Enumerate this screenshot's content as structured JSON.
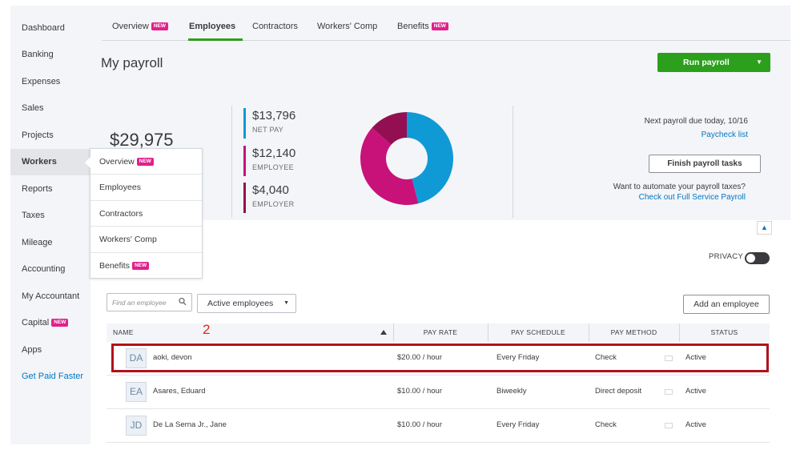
{
  "sidebar": {
    "items": [
      {
        "label": "Dashboard"
      },
      {
        "label": "Banking"
      },
      {
        "label": "Expenses"
      },
      {
        "label": "Sales"
      },
      {
        "label": "Projects"
      },
      {
        "label": "Workers"
      },
      {
        "label": "Reports"
      },
      {
        "label": "Taxes"
      },
      {
        "label": "Mileage"
      },
      {
        "label": "Accounting"
      },
      {
        "label": "My Accountant"
      },
      {
        "label": "Capital",
        "badge": "NEW"
      },
      {
        "label": "Apps"
      },
      {
        "label": "Get Paid Faster"
      }
    ]
  },
  "flyout": {
    "items": [
      {
        "label": "Overview",
        "badge": "NEW"
      },
      {
        "label": "Employees"
      },
      {
        "label": "Contractors"
      },
      {
        "label": "Workers' Comp"
      },
      {
        "label": "Benefits",
        "badge": "NEW"
      }
    ]
  },
  "tabs": [
    {
      "label": "Overview",
      "badge": "NEW"
    },
    {
      "label": "Employees"
    },
    {
      "label": "Contractors"
    },
    {
      "label": "Workers' Comp"
    },
    {
      "label": "Benefits",
      "badge": "NEW"
    }
  ],
  "page": {
    "title": "My payroll",
    "run_payroll": "Run payroll"
  },
  "summary": {
    "total": "$29,975",
    "net_pay": {
      "value": "$13,796",
      "label": "NET PAY",
      "color": "#0f9ad6"
    },
    "employee": {
      "value": "$12,140",
      "label": "EMPLOYEE",
      "color": "#c8127a"
    },
    "employer": {
      "value": "$4,040",
      "label": "EMPLOYER",
      "color": "#940f52"
    },
    "donut_fractions": [
      0.46,
      0.405,
      0.135
    ],
    "next_due": "Next payroll due today, 10/16",
    "paycheck_list": "Paycheck list",
    "finish_tasks": "Finish payroll tasks",
    "automate_text": "Want to automate your payroll taxes?",
    "full_service_link": "Check out Full Service Payroll"
  },
  "toolbar": {
    "privacy": "PRIVACY",
    "search_placeholder": "Find an employee",
    "filter": "Active employees",
    "add_employee": "Add an employee"
  },
  "table": {
    "headers": [
      "NAME",
      "PAY RATE",
      "PAY SCHEDULE",
      "PAY METHOD",
      "STATUS"
    ],
    "annotation": "2",
    "rows": [
      {
        "initials": "DA",
        "name": "aoki, devon",
        "rate": "$20.00 / hour",
        "schedule": "Every Friday",
        "method": "Check",
        "status": "Active"
      },
      {
        "initials": "EA",
        "name": "Asares, Eduard",
        "rate": "$10.00 / hour",
        "schedule": "Biweekly",
        "method": "Direct deposit",
        "status": "Active"
      },
      {
        "initials": "JD",
        "name": "De La Serna Jr., Jane",
        "rate": "$10.00 / hour",
        "schedule": "Every Friday",
        "method": "Check",
        "status": "Active"
      }
    ]
  }
}
